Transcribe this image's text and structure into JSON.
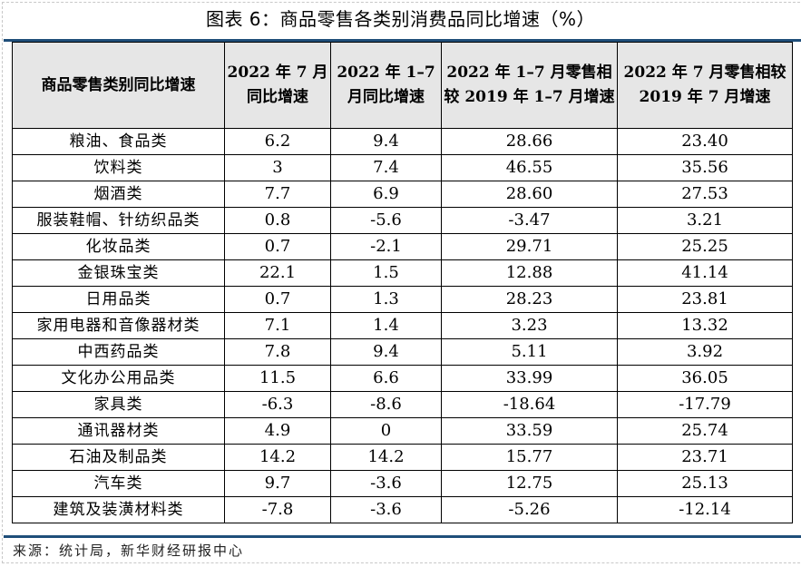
{
  "title": "图表 6：商品零售各类别消费品同比增速（%）",
  "table": {
    "headers": [
      "商品零售类别同比增速",
      "2022 年 7 月同比增速",
      "2022 年 1–7 月同比增速",
      "2022 年 1–7 月零售相较 2019 年 1–7 月增速",
      "2022 年 7 月零售相较 2019 年 7 月增速"
    ],
    "rows": [
      [
        "粮油、食品类",
        "6.2",
        "9.4",
        "28.66",
        "23.40"
      ],
      [
        "饮料类",
        "3",
        "7.4",
        "46.55",
        "35.56"
      ],
      [
        "烟酒类",
        "7.7",
        "6.9",
        "28.60",
        "27.53"
      ],
      [
        "服装鞋帽、针纺织品类",
        "0.8",
        "-5.6",
        "-3.47",
        "3.21"
      ],
      [
        "化妆品类",
        "0.7",
        "-2.1",
        "29.71",
        "25.25"
      ],
      [
        "金银珠宝类",
        "22.1",
        "1.5",
        "12.88",
        "41.14"
      ],
      [
        "日用品类",
        "0.7",
        "1.3",
        "28.23",
        "23.81"
      ],
      [
        "家用电器和音像器材类",
        "7.1",
        "1.4",
        "3.23",
        "13.32"
      ],
      [
        "中西药品类",
        "7.8",
        "9.4",
        "5.11",
        "3.92"
      ],
      [
        "文化办公用品类",
        "11.5",
        "6.6",
        "33.99",
        "36.05"
      ],
      [
        "家具类",
        "-6.3",
        "-8.6",
        "-18.64",
        "-17.79"
      ],
      [
        "通讯器材类",
        "4.9",
        "0",
        "33.59",
        "25.74"
      ],
      [
        "石油及制品类",
        "14.2",
        "14.2",
        "15.77",
        "23.71"
      ],
      [
        "汽车类",
        "9.7",
        "-3.6",
        "12.75",
        "25.13"
      ],
      [
        "建筑及装潢材料类",
        "-7.8",
        "-3.6",
        "-5.26",
        "-12.14"
      ]
    ]
  },
  "source": "来源：统计局，新华财经研报中心",
  "colors": {
    "rule": "#1f4e79",
    "header_bg": "#e6e6e6"
  }
}
